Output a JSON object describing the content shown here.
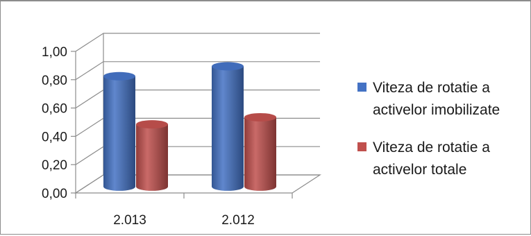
{
  "chart_data": {
    "type": "bar",
    "style": "3d-cylinder",
    "categories": [
      "2.013",
      "2.012"
    ],
    "series": [
      {
        "name_lines": [
          "Viteza de rotatie a",
          "activelor imobilizate"
        ],
        "color": "#4472c4",
        "values": [
          0.78,
          0.85
        ]
      },
      {
        "name_lines": [
          "Viteza de rotatie a",
          "activelor totale"
        ],
        "color": "#c0504d",
        "values": [
          0.44,
          0.49
        ]
      }
    ],
    "y_tick_labels": [
      "0,00",
      "0,20",
      "0,40",
      "0,60",
      "0,80",
      "1,00"
    ],
    "ylim": [
      0,
      1.0
    ],
    "grid": true,
    "legend_position": "right"
  }
}
